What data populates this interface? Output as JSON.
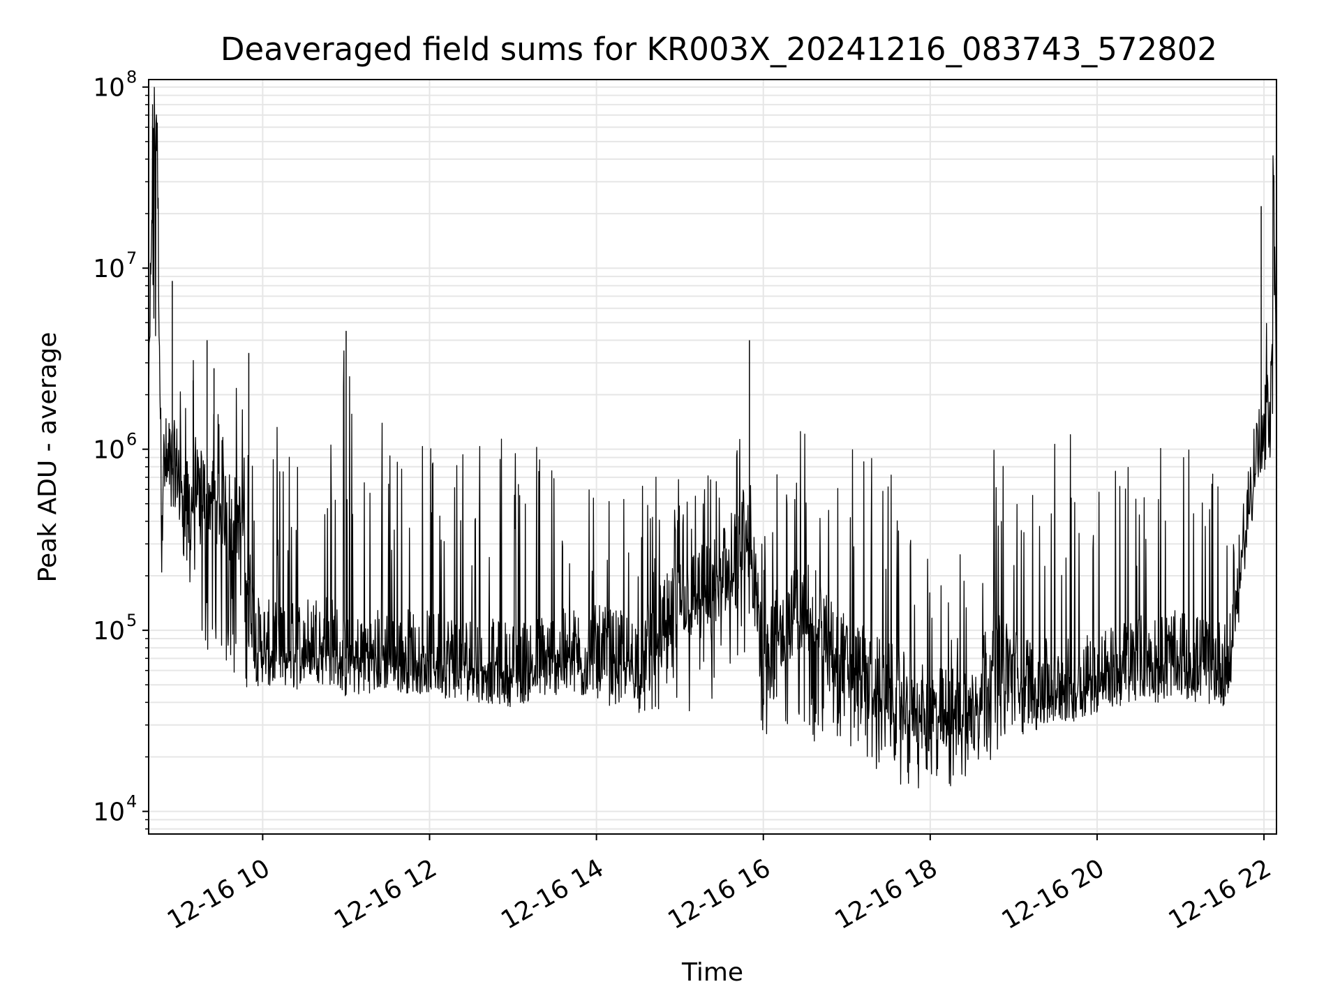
{
  "chart_data": {
    "type": "line",
    "title": "Deaveraged field sums for KR003X_20241216_083743_572802",
    "xlabel": "Time",
    "ylabel": "Peak ADU - average",
    "yscale": "log",
    "xlim": [
      "2024-12-16 08:38",
      "2024-12-16 22:09"
    ],
    "ylim": [
      7500,
      110000000
    ],
    "grid": {
      "major": true,
      "minor_y": true
    },
    "line_color": "#000000",
    "x_ticks": [
      "12-16 10",
      "12-16 12",
      "12-16 14",
      "12-16 16",
      "12-16 18",
      "12-16 20",
      "12-16 22"
    ],
    "y_ticks": [
      {
        "base": "10",
        "exp": "4",
        "value": 10000
      },
      {
        "base": "10",
        "exp": "5",
        "value": 100000
      },
      {
        "base": "10",
        "exp": "6",
        "value": 1000000
      },
      {
        "base": "10",
        "exp": "7",
        "value": 10000000
      },
      {
        "base": "10",
        "exp": "8",
        "value": 100000000
      }
    ],
    "series": [
      {
        "x": [
          "2024-12-16 08:38",
          "2024-12-16 08:41",
          "2024-12-16 08:44",
          "2024-12-16 08:47",
          "2024-12-16 08:50",
          "2024-12-16 09:00",
          "2024-12-16 09:05",
          "2024-12-16 09:15",
          "2024-12-16 09:30",
          "2024-12-16 09:45",
          "2024-12-16 09:55",
          "2024-12-16 10:15",
          "2024-12-16 10:45",
          "2024-12-16 11:00",
          "2024-12-16 11:30",
          "2024-12-16 12:00",
          "2024-12-16 12:30",
          "2024-12-16 13:00",
          "2024-12-16 13:30",
          "2024-12-16 14:00",
          "2024-12-16 14:30",
          "2024-12-16 15:00",
          "2024-12-16 15:30",
          "2024-12-16 15:50",
          "2024-12-16 16:00",
          "2024-12-16 16:30",
          "2024-12-16 17:00",
          "2024-12-16 17:30",
          "2024-12-16 18:00",
          "2024-12-16 18:30",
          "2024-12-16 18:45",
          "2024-12-16 19:00",
          "2024-12-16 19:30",
          "2024-12-16 20:00",
          "2024-12-16 20:30",
          "2024-12-16 21:00",
          "2024-12-16 21:35",
          "2024-12-16 21:45",
          "2024-12-16 21:55",
          "2024-12-16 22:00",
          "2024-12-16 22:05",
          "2024-12-16 22:07",
          "2024-12-16 22:09"
        ],
        "y": [
          1500000,
          70000000,
          60000000,
          700000,
          900000,
          800000,
          500000,
          600000,
          500000,
          400000,
          90000,
          80000,
          100000,
          70000,
          80000,
          75000,
          70000,
          65000,
          75000,
          80000,
          70000,
          150000,
          200000,
          300000,
          80000,
          150000,
          70000,
          50000,
          35000,
          40000,
          80000,
          60000,
          50000,
          60000,
          70000,
          75000,
          65000,
          300000,
          1000000,
          1200000,
          2000000,
          70000000,
          900000
        ],
        "range_low": [
          1200000,
          1200000,
          1200000,
          150000,
          500000,
          300000,
          200000,
          80000,
          60000,
          50000,
          45000,
          45000,
          50000,
          45000,
          45000,
          45000,
          40000,
          40000,
          45000,
          40000,
          35000,
          30000,
          35000,
          60000,
          25000,
          25000,
          20000,
          15000,
          12000,
          14000,
          20000,
          25000,
          30000,
          35000,
          40000,
          40000,
          38000,
          250000,
          700000,
          700000,
          700000,
          700000,
          600000
        ],
        "range_high": [
          3000000,
          75000000,
          75000000,
          1500000,
          1500000,
          2400000,
          4000000,
          2800000,
          1700000,
          3300000,
          1400000,
          1400000,
          1000000,
          4500000,
          1300000,
          1300000,
          1300000,
          1300000,
          1000000,
          700000,
          650000,
          800000,
          700000,
          1600000,
          900000,
          1500000,
          1200000,
          1100000,
          290000,
          280000,
          1400000,
          1300000,
          1200000,
          1300000,
          1300000,
          1100000,
          900000,
          500000,
          2000000,
          22000000,
          2500000,
          73000000,
          1500000
        ]
      }
    ],
    "spikes": [
      {
        "x": "2024-12-16 08:55",
        "y": 8500000
      },
      {
        "x": "2024-12-16 09:10",
        "y": 2400000
      },
      {
        "x": "2024-12-16 09:20",
        "y": 4000000
      },
      {
        "x": "2024-12-16 09:25",
        "y": 2800000
      },
      {
        "x": "2024-12-16 09:50",
        "y": 3400000
      },
      {
        "x": "2024-12-16 11:00",
        "y": 4500000
      },
      {
        "x": "2024-12-16 15:50",
        "y": 4000000
      },
      {
        "x": "2024-12-16 21:58",
        "y": 22000000
      }
    ]
  }
}
